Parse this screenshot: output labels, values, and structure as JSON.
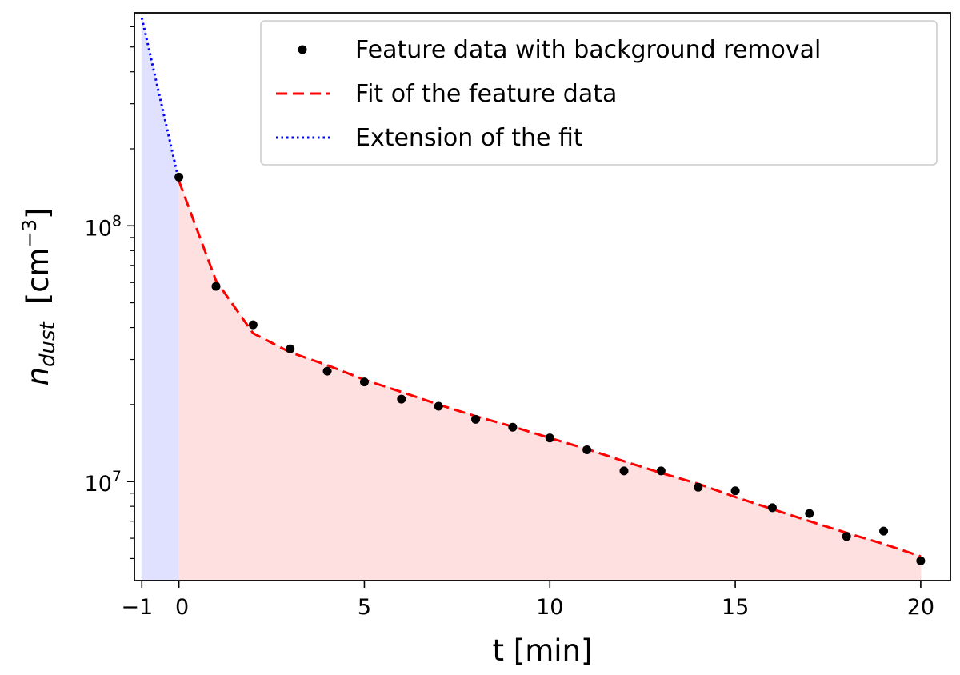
{
  "chart_data": {
    "type": "scatter",
    "xlabel": "t [min]",
    "ylabel": {
      "symbol": "n",
      "subscript": "dust",
      "unit_open": "[cm",
      "unit_exponent": "−3",
      "unit_close": "]"
    },
    "xlim": [
      -1.2,
      20.8
    ],
    "ylim": [
      4100000,
      680000000
    ],
    "yscale": "log",
    "x_ticks": [
      {
        "value": -1,
        "label": "−1"
      },
      {
        "value": 0,
        "label": "0"
      },
      {
        "value": 5,
        "label": "5"
      },
      {
        "value": 10,
        "label": "10"
      },
      {
        "value": 15,
        "label": "15"
      },
      {
        "value": 20,
        "label": "20"
      }
    ],
    "y_ticks": [
      {
        "value": 10000000,
        "base": "10",
        "exponent": "7"
      },
      {
        "value": 100000000,
        "base": "10",
        "exponent": "8"
      }
    ],
    "legend_position": "top-right",
    "series": [
      {
        "name": "Feature data with background removal",
        "kind": "markers",
        "color": "#000000",
        "x": [
          0,
          1,
          2,
          3,
          4,
          5,
          6,
          7,
          8,
          9,
          10,
          11,
          12,
          13,
          14,
          15,
          16,
          17,
          18,
          19,
          20
        ],
        "y": [
          155000000,
          58000000,
          41000000,
          33000000,
          27000000,
          24500000,
          21000000,
          19700000,
          17500000,
          16300000,
          14800000,
          13300000,
          11000000,
          11000000,
          9500000,
          9200000,
          7900000,
          7500000,
          6100000,
          6400000,
          4900000
        ]
      },
      {
        "name": "Fit of the feature data",
        "kind": "dashed-line",
        "color": "#ff0000",
        "x": [
          0,
          1,
          2,
          3,
          4,
          5,
          6,
          7,
          8,
          9,
          10,
          11,
          12,
          13,
          14,
          15,
          16,
          17,
          18,
          19,
          20
        ],
        "y": [
          150000000,
          61000000,
          38000000,
          32000000,
          28500000,
          25000000,
          22400000,
          20000000,
          18000000,
          16400000,
          14800000,
          13400000,
          12000000,
          10800000,
          9800000,
          8700000,
          7800000,
          7000000,
          6300000,
          5700000,
          5100000
        ]
      },
      {
        "name": "Extension of the fit",
        "kind": "dotted-line",
        "color": "#0000ff",
        "x": [
          -1,
          0
        ],
        "y": [
          650000000,
          150000000
        ]
      }
    ],
    "fills": [
      {
        "x0": -1,
        "x1": 0,
        "color": "#e0e0ff"
      },
      {
        "x0": 0,
        "x1": 20,
        "color": "#ffe0e0"
      }
    ]
  }
}
